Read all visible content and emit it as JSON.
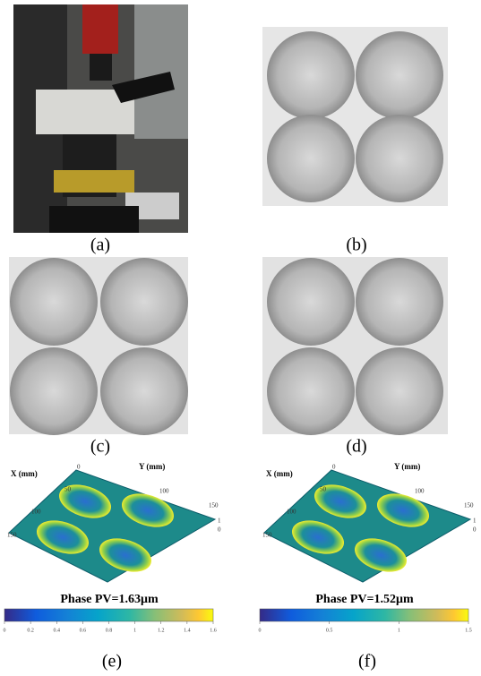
{
  "panels": [
    {
      "label": "(a)"
    },
    {
      "label": "(b)"
    },
    {
      "label": "(c)"
    },
    {
      "label": "(d)"
    },
    {
      "label": "(e)"
    },
    {
      "label": "(f)"
    }
  ],
  "plots": [
    {
      "x_axis": "X (mm)",
      "y_axis": "Y (mm)",
      "x_ticks": [
        0,
        50,
        100,
        150
      ],
      "y_ticks": [
        100,
        150
      ],
      "z_ticks": [
        1,
        0
      ],
      "title": "Phase PV=1.63μm",
      "colorbar_ticks": [
        0,
        0.2,
        0.4,
        0.6,
        0.8,
        1,
        1.2,
        1.4,
        1.6
      ]
    },
    {
      "x_axis": "X (mm)",
      "y_axis": "Y (mm)",
      "x_ticks": [
        0,
        50,
        100,
        150
      ],
      "y_ticks": [
        100,
        150
      ],
      "z_ticks": [
        1,
        0
      ],
      "title": "Phase PV=1.52μm",
      "colorbar_ticks": [
        0,
        0.5,
        1,
        1.5
      ]
    }
  ]
}
